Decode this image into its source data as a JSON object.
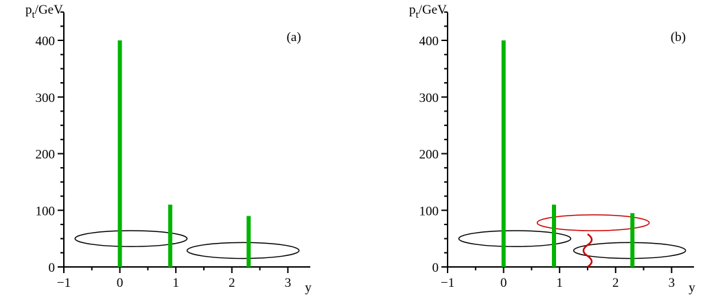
{
  "chart_data": [
    {
      "type": "bar",
      "panel_label": "(a)",
      "ylabel_main": "p",
      "ylabel_sub": "t",
      "ylabel_rest": "/GeV",
      "xlabel": "y",
      "xlim": [
        -1,
        3.4
      ],
      "ylim": [
        0,
        450
      ],
      "xticks": [
        -1,
        0,
        1,
        2,
        3
      ],
      "xtick_labels": [
        "−1",
        "0",
        "1",
        "2",
        "3"
      ],
      "yticks": [
        0,
        100,
        200,
        300,
        400
      ],
      "ytick_labels": [
        "0",
        "100",
        "200",
        "300",
        "400"
      ],
      "bars": [
        {
          "x": 0.0,
          "value": 400
        },
        {
          "x": 0.9,
          "value": 110
        },
        {
          "x": 2.3,
          "value": 90
        }
      ],
      "bar_color": "#00b400",
      "ellipses": [
        {
          "cx": 0.2,
          "cy": 50,
          "rx": 1.0,
          "ry": 14,
          "color": "#000000"
        },
        {
          "cx": 2.2,
          "cy": 29,
          "rx": 1.0,
          "ry": 14,
          "color": "#000000"
        }
      ],
      "wavy_lines": []
    },
    {
      "type": "bar",
      "panel_label": "(b)",
      "ylabel_main": "p",
      "ylabel_sub": "t",
      "ylabel_rest": "/GeV",
      "xlabel": "y",
      "xlim": [
        -1,
        3.4
      ],
      "ylim": [
        0,
        450
      ],
      "xticks": [
        -1,
        0,
        1,
        2,
        3
      ],
      "xtick_labels": [
        "−1",
        "0",
        "1",
        "2",
        "3"
      ],
      "yticks": [
        0,
        100,
        200,
        300,
        400
      ],
      "ytick_labels": [
        "0",
        "100",
        "200",
        "300",
        "400"
      ],
      "bars": [
        {
          "x": 0.0,
          "value": 400
        },
        {
          "x": 0.9,
          "value": 110
        },
        {
          "x": 2.3,
          "value": 95
        }
      ],
      "bar_color": "#00b400",
      "ellipses": [
        {
          "cx": 0.2,
          "cy": 50,
          "rx": 1.0,
          "ry": 14,
          "color": "#000000"
        },
        {
          "cx": 2.25,
          "cy": 29,
          "rx": 1.0,
          "ry": 14,
          "color": "#000000"
        },
        {
          "cx": 1.6,
          "cy": 78,
          "rx": 1.0,
          "ry": 14,
          "color": "#cc0000"
        }
      ],
      "wavy_lines": [
        {
          "x": 1.5,
          "y_from": 0,
          "y_to": 58,
          "color": "#cc0000"
        }
      ]
    }
  ]
}
